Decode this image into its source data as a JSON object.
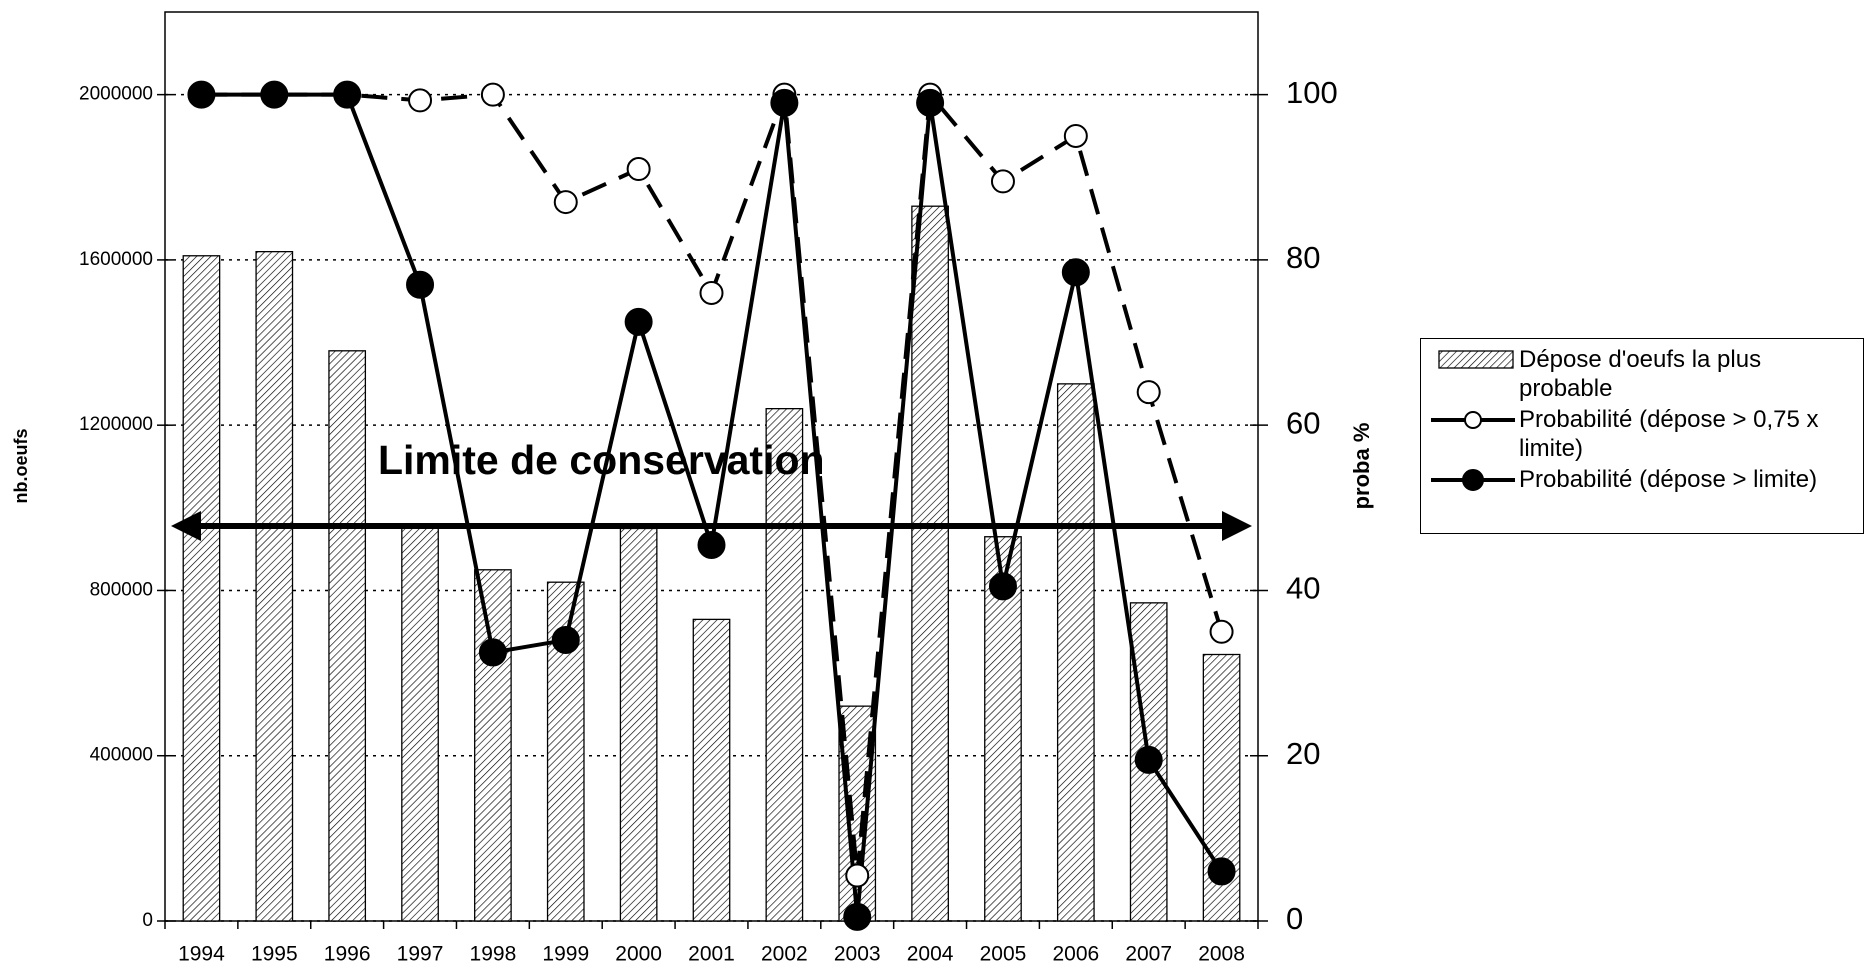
{
  "chart_data": {
    "type": "bar",
    "categories": [
      "1994",
      "1995",
      "1996",
      "1997",
      "1998",
      "1999",
      "2000",
      "2001",
      "2002",
      "2003",
      "2004",
      "2005",
      "2006",
      "2007",
      "2008"
    ],
    "series": [
      {
        "name": "Dépose d'oeufs la plus probable",
        "type": "bar",
        "axis": "y",
        "color": "#000000",
        "values": [
          1610000,
          1620000,
          1380000,
          960000,
          850000,
          820000,
          950000,
          730000,
          1240000,
          520000,
          1730000,
          930000,
          1300000,
          770000,
          645000
        ]
      },
      {
        "name": "Probabilité (dépose > 0,75 x limite)",
        "type": "line",
        "axis": "y2",
        "color": "#000000",
        "dashed": true,
        "marker": "open",
        "values": [
          100,
          100,
          100,
          99.3,
          100,
          87,
          91,
          76,
          100,
          5.5,
          100,
          89.5,
          95,
          64,
          35
        ]
      },
      {
        "name": "Probabilité (dépose > limite)",
        "type": "line",
        "axis": "y2",
        "color": "#000000",
        "dashed": false,
        "marker": "filled",
        "values": [
          100,
          100,
          100,
          77,
          32.5,
          34,
          72.5,
          45.5,
          99,
          0.5,
          99,
          40.5,
          78.5,
          19.5,
          6
        ]
      }
    ],
    "ylabel": "nb.oeufs",
    "y2label": "proba %",
    "ylim": [
      0,
      2200000
    ],
    "yticks": [
      0,
      400000,
      800000,
      1200000,
      1600000,
      2000000
    ],
    "y2lim": [
      0,
      110
    ],
    "y2ticks": [
      0,
      20,
      40,
      60,
      80,
      100
    ],
    "grid": true,
    "legend": "right",
    "annotation": {
      "text": "Limite de conservation",
      "value": 956000
    }
  }
}
